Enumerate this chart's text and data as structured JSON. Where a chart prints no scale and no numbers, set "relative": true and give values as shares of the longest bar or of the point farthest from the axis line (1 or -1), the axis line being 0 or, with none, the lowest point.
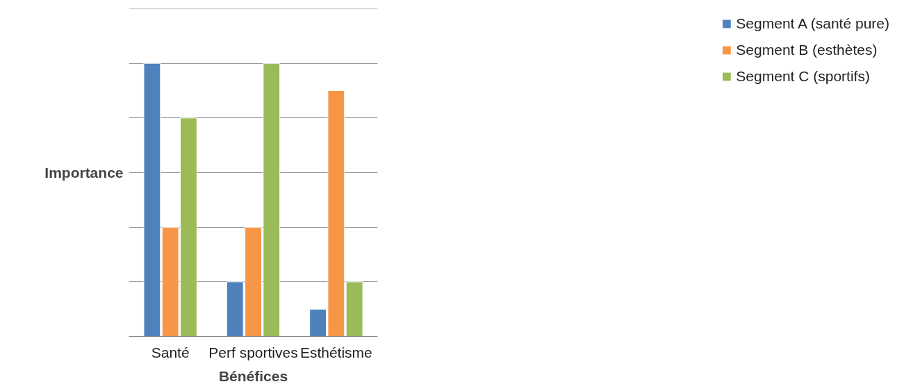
{
  "chart_data": {
    "type": "bar",
    "relative": true,
    "xlabel": "Bénéfices",
    "ylabel": "Importance",
    "categories": [
      "Santé",
      "Perf sportives",
      "Esthétisme"
    ],
    "series": [
      {
        "name": "Segment A (santé pure)",
        "color": "#4f81bd",
        "values": [
          1,
          0.2,
          0.1
        ]
      },
      {
        "name": "Segment B (esthètes)",
        "color": "#f79646",
        "values": [
          0.4,
          0.4,
          0.9
        ]
      },
      {
        "name": "Segment C (sportifs)",
        "color": "#9bbb59",
        "values": [
          0.8,
          1,
          0.2
        ]
      }
    ],
    "grid": "y",
    "legend": "right"
  }
}
